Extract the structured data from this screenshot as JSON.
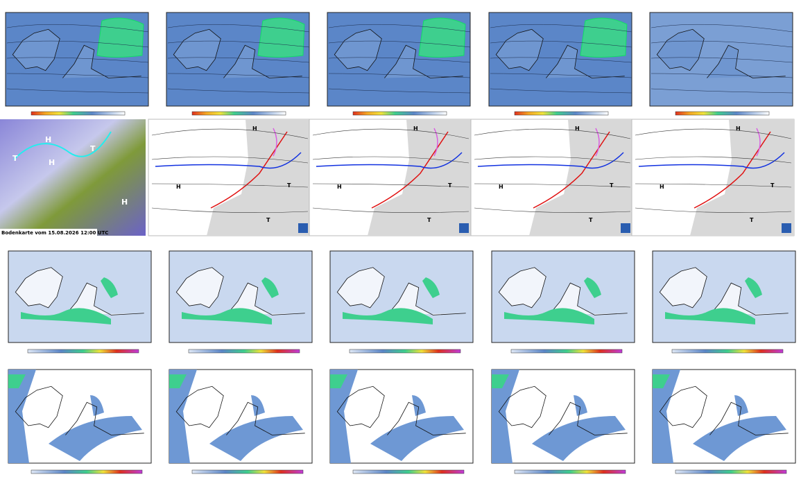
{
  "satellite_caption": "Bodenkarte vom 15.08.2026 12:00 UTC",
  "pressure_centers": {
    "high": "H",
    "low": "T"
  }
}
